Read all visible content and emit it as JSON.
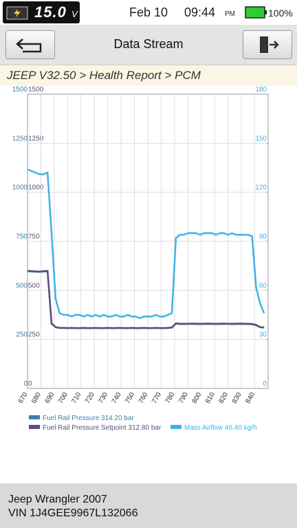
{
  "status_bar": {
    "voltage": "15.0",
    "voltage_unit": "V",
    "date": "Feb 10",
    "time": "09:44",
    "ampm": "PM",
    "battery": "100%"
  },
  "header": {
    "title": "Data Stream"
  },
  "breadcrumb": "JEEP V32.50 > Health Report > PCM",
  "chart_data": {
    "type": "line",
    "x": [
      670,
      673,
      676,
      679,
      682,
      685,
      688,
      691,
      694,
      697,
      700,
      703,
      706,
      709,
      712,
      715,
      718,
      721,
      724,
      727,
      730,
      733,
      736,
      739,
      742,
      745,
      748,
      751,
      754,
      757,
      760,
      763,
      766,
      769,
      772,
      775,
      778,
      781,
      784,
      787,
      790,
      793,
      796,
      799,
      802,
      805,
      808,
      811,
      814,
      817,
      820,
      823,
      826,
      829,
      832,
      835,
      838,
      841,
      844,
      847
    ],
    "xlim": [
      670,
      850
    ],
    "xticks": [
      670,
      680,
      690,
      700,
      710,
      720,
      730,
      740,
      750,
      760,
      770,
      780,
      790,
      800,
      810,
      820,
      830,
      840
    ],
    "ylim": [
      0,
      1500
    ],
    "yticks": [
      0,
      250,
      500,
      750,
      1000,
      1250,
      1500
    ],
    "y2lim": [
      0,
      180
    ],
    "y2ticks": [
      0,
      30,
      60,
      90,
      120,
      150,
      180
    ],
    "grid": true,
    "series": [
      {
        "name": "Fuel Rail Pressure 314.20 bar",
        "color": "#3f7fa8",
        "values": [
          598,
          596,
          595,
          594,
          596,
          597,
          330,
          312,
          308,
          308,
          307,
          308,
          307,
          307,
          308,
          307,
          307,
          308,
          307,
          307,
          308,
          307,
          307,
          308,
          307,
          307,
          308,
          307,
          307,
          308,
          307,
          307,
          308,
          307,
          307,
          308,
          310,
          330,
          328,
          328,
          328,
          329,
          328,
          328,
          328,
          329,
          328,
          328,
          328,
          329,
          328,
          328,
          328,
          329,
          328,
          328,
          327,
          322,
          312,
          310
        ]
      },
      {
        "name": "Fuel Rail Pressure Setpoint 312.80 bar",
        "color": "#5b5079",
        "values": [
          600,
          598,
          597,
          596,
          598,
          599,
          332,
          313,
          309,
          309,
          308,
          309,
          308,
          308,
          309,
          308,
          308,
          309,
          308,
          308,
          309,
          308,
          308,
          309,
          308,
          308,
          309,
          308,
          308,
          309,
          308,
          308,
          309,
          308,
          308,
          309,
          311,
          332,
          330,
          330,
          330,
          331,
          330,
          330,
          330,
          331,
          330,
          330,
          330,
          331,
          330,
          330,
          330,
          331,
          330,
          330,
          329,
          324,
          313,
          311
        ]
      },
      {
        "name": "Mass Airflow 46.40 kg/h",
        "color": "#3fb1e9",
        "axis": "y2",
        "values": [
          134,
          133,
          132,
          131,
          131,
          132,
          95,
          55,
          46,
          45,
          45,
          44,
          45,
          45,
          44,
          45,
          44,
          45,
          44,
          45,
          44,
          44,
          45,
          44,
          44,
          45,
          44,
          44,
          43,
          44,
          44,
          44,
          45,
          44,
          44,
          45,
          46,
          92,
          94,
          94,
          95,
          95,
          95,
          94,
          95,
          95,
          95,
          94,
          95,
          95,
          94,
          95,
          94,
          94,
          94,
          94,
          93,
          62,
          52,
          46
        ]
      }
    ]
  },
  "footer": {
    "vehicle": "Jeep Wrangler 2007",
    "vin": "VIN 1J4GEE9967L132066"
  }
}
